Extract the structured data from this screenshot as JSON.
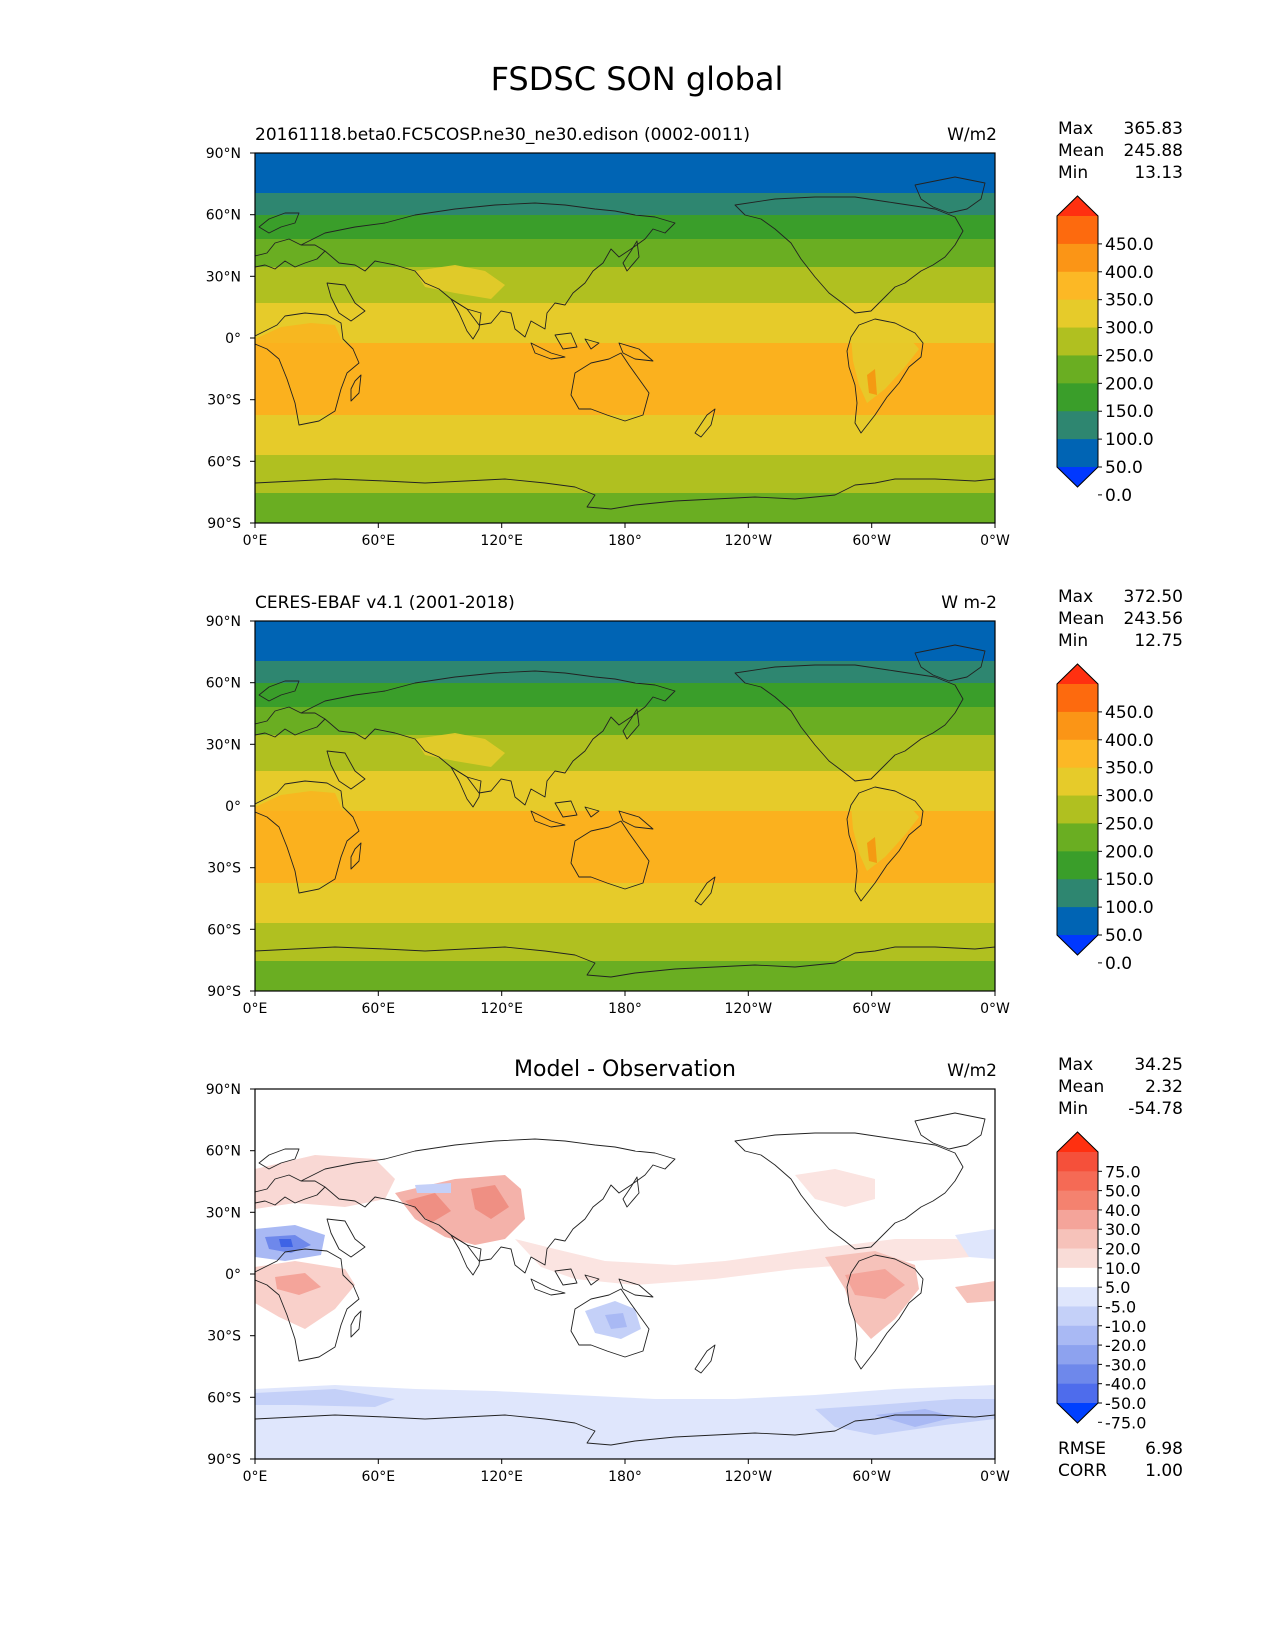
{
  "title": "FSDSC SON global",
  "colors": {
    "blue_ice": "#0064b4",
    "teal": "#2e8670",
    "green": "#3a9e2a",
    "green_mid": "#6aae22",
    "yellow_green": "#b0c020",
    "yellow": "#e6cb2a",
    "orange": "#fbb11e",
    "diff_red_light": "#f9d8d4",
    "diff_red_mid": "#f4a49a",
    "diff_blue_light": "#d7e0fb",
    "diff_blue_mid": "#a9b9f4",
    "diff_blue_dark": "#3e63e6"
  },
  "panels": [
    {
      "id": "model",
      "left_title": "20161118.beta0.FC5COSP.ne30_ne30.edison (0002-0011)",
      "center_title": "",
      "units": "W/m2",
      "stats": [
        {
          "label": "Max",
          "value": "365.83"
        },
        {
          "label": "Mean",
          "value": "245.88"
        },
        {
          "label": "Min",
          "value": "13.13"
        }
      ],
      "colorbar": {
        "labels": [
          "450.0",
          "400.0",
          "350.0",
          "300.0",
          "250.0",
          "200.0",
          "150.0",
          "100.0",
          "50.0",
          "0.0"
        ],
        "colors": [
          "#ff3010",
          "#fd6a0e",
          "#fb9516",
          "#fcb825",
          "#e6cb2a",
          "#b0c020",
          "#6aae22",
          "#3a9e2a",
          "#2e8670",
          "#0064b4",
          "#0038ff"
        ]
      }
    },
    {
      "id": "obs",
      "left_title": "CERES-EBAF v4.1 (2001-2018)",
      "center_title": "",
      "units": "W m-2",
      "stats": [
        {
          "label": "Max",
          "value": "372.50"
        },
        {
          "label": "Mean",
          "value": "243.56"
        },
        {
          "label": "Min",
          "value": "12.75"
        }
      ],
      "colorbar": {
        "labels": [
          "450.0",
          "400.0",
          "350.0",
          "300.0",
          "250.0",
          "200.0",
          "150.0",
          "100.0",
          "50.0",
          "0.0"
        ],
        "colors": [
          "#ff3010",
          "#fd6a0e",
          "#fb9516",
          "#fcb825",
          "#e6cb2a",
          "#b0c020",
          "#6aae22",
          "#3a9e2a",
          "#2e8670",
          "#0064b4",
          "#0038ff"
        ]
      }
    },
    {
      "id": "diff",
      "left_title": "",
      "center_title": "Model - Observation",
      "units": "W/m2",
      "stats": [
        {
          "label": "Max",
          "value": "34.25"
        },
        {
          "label": "Mean",
          "value": "2.32"
        },
        {
          "label": "Min",
          "value": "-54.78"
        }
      ],
      "extra_stats": [
        {
          "label": "RMSE",
          "value": "6.98"
        },
        {
          "label": "CORR",
          "value": "1.00"
        }
      ],
      "colorbar": {
        "labels": [
          "75.0",
          "50.0",
          "40.0",
          "30.0",
          "20.0",
          "10.0",
          "5.0",
          "-5.0",
          "-10.0",
          "-20.0",
          "-30.0",
          "-40.0",
          "-50.0",
          "-75.0"
        ],
        "colors": [
          "#ff3010",
          "#f5503a",
          "#f56a55",
          "#f4826f",
          "#f4a49a",
          "#f6c2ba",
          "#f9dcd7",
          "#ffffff",
          "#dfe6fc",
          "#c4d0f8",
          "#a9b9f4",
          "#8da2ef",
          "#6e88eb",
          "#4e6cec",
          "#0040ff"
        ]
      }
    }
  ],
  "axes": {
    "lat_ticks": [
      "90°N",
      "60°N",
      "30°N",
      "0°",
      "30°S",
      "60°S",
      "90°S"
    ],
    "lon_ticks": [
      "0°E",
      "60°E",
      "120°E",
      "180°",
      "120°W",
      "60°W",
      "0°W"
    ]
  }
}
